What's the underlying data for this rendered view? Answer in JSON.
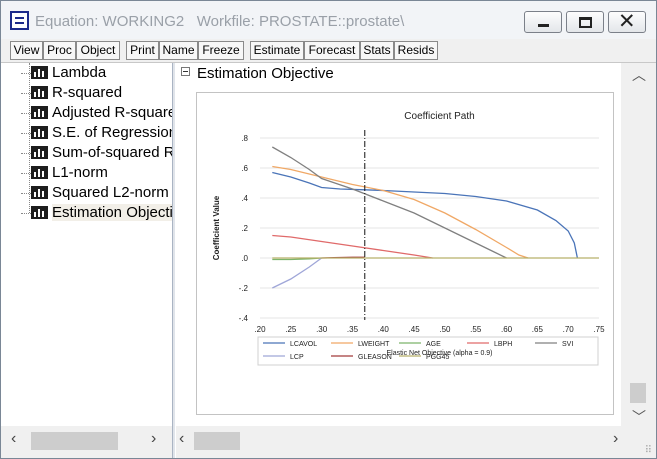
{
  "window": {
    "title": "Equation: WORKING2   Workfile: PROSTATE::prostate\\",
    "controls": {
      "minimize": "minimize-icon",
      "maximize": "maximize-icon",
      "close": "close-icon"
    }
  },
  "toolbar": {
    "buttons": [
      "View",
      "Proc",
      "Object",
      "Print",
      "Name",
      "Freeze",
      "Estimate",
      "Forecast",
      "Stats",
      "Resids"
    ]
  },
  "tree": {
    "items": [
      {
        "label": "Lambda",
        "icon": "table-icon"
      },
      {
        "label": "R-squared",
        "icon": "table-icon"
      },
      {
        "label": "Adjusted R-squared",
        "icon": "table-icon"
      },
      {
        "label": "S.E. of Regression",
        "icon": "table-icon"
      },
      {
        "label": "Sum-of-squared Resids",
        "icon": "table-icon"
      },
      {
        "label": "L1-norm",
        "icon": "table-icon"
      },
      {
        "label": "Squared L2-norm",
        "icon": "table-icon"
      },
      {
        "label": "Estimation Objective",
        "icon": "table-icon",
        "selected": true
      }
    ]
  },
  "section": {
    "title": "Estimation Objective",
    "toggle": "collapse-icon"
  },
  "chart_data": {
    "type": "line",
    "title": "Coefficient Path",
    "xlabel": "Elastic Net Objective (alpha = 0.9)",
    "ylabel": "Coefficient Value",
    "xlim": [
      0.2,
      0.75
    ],
    "ylim": [
      -0.4,
      0.8
    ],
    "xticks": [
      ".20",
      ".25",
      ".30",
      ".35",
      ".40",
      ".45",
      ".50",
      ".55",
      ".60",
      ".65",
      ".70",
      ".75"
    ],
    "yticks": [
      ".8",
      ".6",
      ".4",
      ".2",
      ".0",
      "-.2",
      "-.4"
    ],
    "grid": "horizontal",
    "legend_position": "bottom",
    "vline_x": 0.37,
    "series": [
      {
        "name": "LCAVOL",
        "color": "#4a74b8",
        "x": [
          0.22,
          0.25,
          0.28,
          0.3,
          0.33,
          0.37,
          0.4,
          0.45,
          0.5,
          0.55,
          0.6,
          0.65,
          0.68,
          0.7,
          0.71,
          0.715
        ],
        "y": [
          0.57,
          0.54,
          0.5,
          0.47,
          0.46,
          0.455,
          0.45,
          0.44,
          0.43,
          0.41,
          0.38,
          0.32,
          0.25,
          0.18,
          0.1,
          0.0
        ]
      },
      {
        "name": "LWEIGHT",
        "color": "#f0a866",
        "x": [
          0.22,
          0.25,
          0.3,
          0.35,
          0.4,
          0.45,
          0.5,
          0.55,
          0.6,
          0.62,
          0.635
        ],
        "y": [
          0.61,
          0.59,
          0.54,
          0.49,
          0.45,
          0.39,
          0.3,
          0.19,
          0.07,
          0.02,
          0.0
        ]
      },
      {
        "name": "AGE",
        "color": "#7cb46a",
        "x": [
          0.22,
          0.25,
          0.28,
          0.3
        ],
        "y": [
          -0.01,
          -0.01,
          -0.005,
          0.0
        ]
      },
      {
        "name": "LBPH",
        "color": "#e06a6a",
        "x": [
          0.22,
          0.25,
          0.3,
          0.35,
          0.4,
          0.45,
          0.48
        ],
        "y": [
          0.15,
          0.14,
          0.11,
          0.08,
          0.05,
          0.02,
          0.0
        ]
      },
      {
        "name": "SVI",
        "color": "#808080",
        "x": [
          0.22,
          0.25,
          0.28,
          0.3,
          0.35,
          0.4,
          0.45,
          0.5,
          0.55,
          0.58,
          0.6
        ],
        "y": [
          0.74,
          0.67,
          0.59,
          0.53,
          0.46,
          0.38,
          0.3,
          0.2,
          0.1,
          0.04,
          0.0
        ]
      },
      {
        "name": "LCP",
        "color": "#9fa6d8",
        "x": [
          0.22,
          0.25,
          0.28,
          0.3
        ],
        "y": [
          -0.2,
          -0.14,
          -0.06,
          0.0
        ]
      },
      {
        "name": "GLEASON",
        "color": "#a23a3a",
        "x": [
          0.3,
          0.32,
          0.35,
          0.37
        ],
        "y": [
          0.0,
          0.002,
          0.005,
          0.005
        ]
      },
      {
        "name": "PGG45",
        "color": "#b6b06a",
        "x": [
          0.22,
          0.3,
          0.4,
          0.5,
          0.6,
          0.7,
          0.75
        ],
        "y": [
          0.0,
          0.0,
          0.0,
          0.0,
          0.0,
          0.0,
          0.0
        ]
      }
    ]
  },
  "scrollbars": {
    "vertical": {
      "up": "chevron-up-icon",
      "down": "chevron-down-icon"
    },
    "left_horizontal": {
      "left": "chevron-left-icon",
      "right": "chevron-right-icon"
    },
    "right_horizontal": {
      "left": "chevron-left-icon",
      "right": "chevron-right-icon"
    }
  }
}
